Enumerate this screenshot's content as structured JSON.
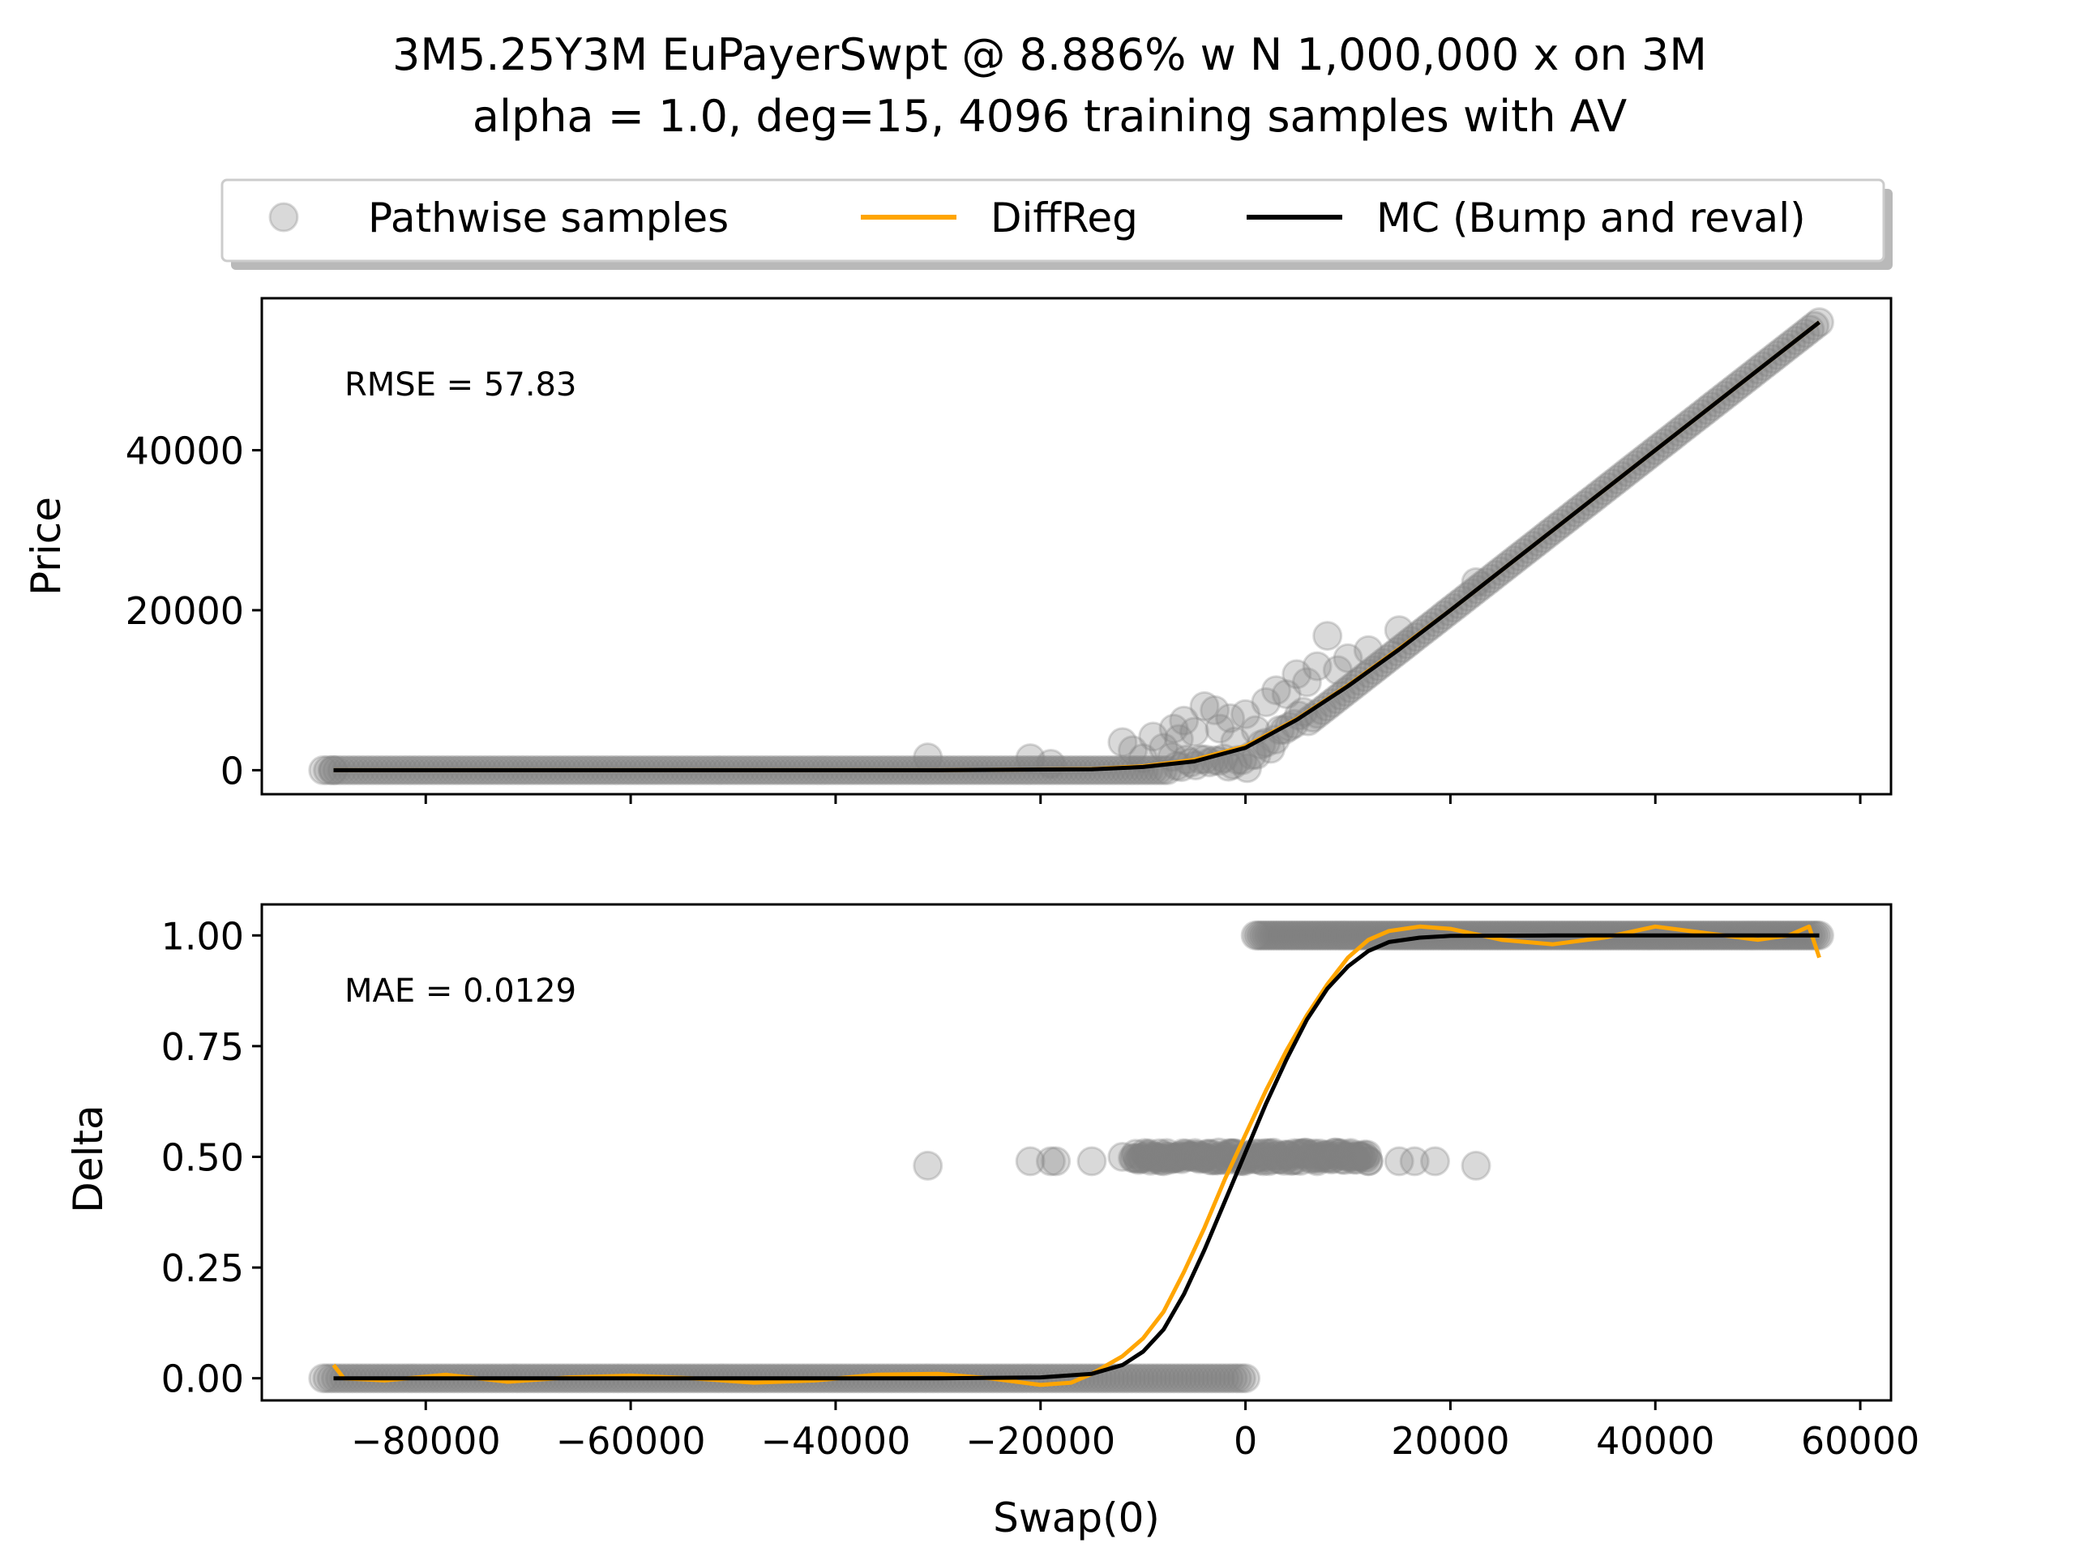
{
  "figure": {
    "title_line1": "3M5.25Y3M EuPayerSwpt @ 8.886% w N 1,000,000 x on 3M",
    "title_line2": "alpha = 1.0, deg=15, 4096 training samples with AV"
  },
  "legend": {
    "placement": "top-center, above plots",
    "entries": [
      {
        "label": "Pathwise samples",
        "kind": "marker",
        "color": "#808080"
      },
      {
        "label": "DiffReg",
        "kind": "line",
        "color": "#ffa500"
      },
      {
        "label": "MC (Bump and reval)",
        "kind": "line",
        "color": "#000000"
      }
    ]
  },
  "chart_data": [
    {
      "type": "scatter",
      "panel": "top",
      "ylabel": "Price",
      "xlabel": "",
      "xlim": [
        -96000,
        63000
      ],
      "ylim": [
        -3000,
        59000
      ],
      "yticks": [
        0,
        20000,
        40000
      ],
      "ytick_labels": [
        "0",
        "20000",
        "40000"
      ],
      "xticks": [
        -80000,
        -60000,
        -40000,
        -20000,
        0,
        20000,
        40000,
        60000
      ],
      "show_xtick_labels": false,
      "annotation": "RMSE = 57.83",
      "grid": false,
      "series": [
        {
          "name": "Pathwise samples",
          "kind": "scatter",
          "color": "#808080",
          "note": "dense band following max(x,0); scattered outliers near x=0",
          "points": [
            [
              -89000,
              0
            ],
            [
              -31000,
              1600
            ],
            [
              -21000,
              1500
            ],
            [
              -19000,
              800
            ],
            [
              -12000,
              3500
            ],
            [
              -11000,
              2500
            ],
            [
              -10000,
              1500
            ],
            [
              -9000,
              4200
            ],
            [
              -8000,
              2800
            ],
            [
              -7000,
              5200
            ],
            [
              -6500,
              3900
            ],
            [
              -6000,
              6200
            ],
            [
              -5000,
              4800
            ],
            [
              -4000,
              8000
            ],
            [
              -3000,
              7500
            ],
            [
              -2500,
              5200
            ],
            [
              -1500,
              6500
            ],
            [
              -1000,
              3600
            ],
            [
              0,
              7000
            ],
            [
              1000,
              5000
            ],
            [
              2000,
              8500
            ],
            [
              3000,
              10000
            ],
            [
              4000,
              9500
            ],
            [
              5000,
              12000
            ],
            [
              6000,
              11000
            ],
            [
              7000,
              13000
            ],
            [
              8000,
              16800
            ],
            [
              9000,
              12500
            ],
            [
              10000,
              14000
            ],
            [
              12000,
              15000
            ],
            [
              15000,
              17500
            ],
            [
              22500,
              23500
            ]
          ],
          "band": [
            [
              -90000,
              0
            ],
            [
              0,
              0
            ],
            [
              56000,
              56000
            ]
          ]
        },
        {
          "name": "DiffReg",
          "kind": "line",
          "color": "#ffa500",
          "x": [
            -89000,
            -30000,
            -15000,
            -10000,
            -5000,
            0,
            5000,
            10000,
            15000,
            20000,
            30000,
            40000,
            56000
          ],
          "y": [
            0,
            0,
            150,
            500,
            1300,
            3000,
            6400,
            10600,
            15200,
            20000,
            30000,
            40000,
            56000
          ]
        },
        {
          "name": "MC (Bump and reval)",
          "kind": "line",
          "color": "#000000",
          "x": [
            -89000,
            -30000,
            -15000,
            -10000,
            -5000,
            0,
            5000,
            10000,
            15000,
            20000,
            30000,
            40000,
            56000
          ],
          "y": [
            0,
            0,
            120,
            400,
            1100,
            2800,
            6300,
            10500,
            15100,
            20000,
            30000,
            40000,
            56000
          ]
        }
      ]
    },
    {
      "type": "scatter",
      "panel": "bottom",
      "ylabel": "Delta",
      "xlabel": "Swap(0)",
      "xlim": [
        -96000,
        63000
      ],
      "ylim": [
        -0.05,
        1.07
      ],
      "yticks": [
        0,
        0.25,
        0.5,
        0.75,
        1.0
      ],
      "ytick_labels": [
        "0.00",
        "0.25",
        "0.50",
        "0.75",
        "1.00"
      ],
      "xticks": [
        -80000,
        -60000,
        -40000,
        -20000,
        0,
        20000,
        40000,
        60000
      ],
      "xtick_labels": [
        "−80000",
        "−60000",
        "−40000",
        "−20000",
        "0",
        "20000",
        "40000",
        "60000"
      ],
      "annotation": "MAE = 0.0129",
      "grid": false,
      "series": [
        {
          "name": "Pathwise samples",
          "kind": "scatter",
          "color": "#808080",
          "band_low": {
            "x": [
              -90000,
              0
            ],
            "y": 0
          },
          "band_high": {
            "x": [
              1000,
              56000
            ],
            "y": 1
          },
          "band_mid": {
            "x": [
              -11000,
              12000
            ],
            "y": 0.5
          },
          "points": [
            [
              -31000,
              0.48
            ],
            [
              -21000,
              0.49
            ],
            [
              -19000,
              0.49
            ],
            [
              -18500,
              0.49
            ],
            [
              -15000,
              0.49
            ],
            [
              -12000,
              0.5
            ],
            [
              -8000,
              0.49
            ],
            [
              -4000,
              0.5
            ],
            [
              2000,
              0.5
            ],
            [
              7000,
              0.49
            ],
            [
              12000,
              0.49
            ],
            [
              15000,
              0.49
            ],
            [
              16500,
              0.49
            ],
            [
              18500,
              0.49
            ],
            [
              22500,
              0.48
            ]
          ]
        },
        {
          "name": "DiffReg",
          "kind": "line",
          "color": "#ffa500",
          "x": [
            -89000,
            -88000,
            -84000,
            -78000,
            -72000,
            -66000,
            -60000,
            -54000,
            -48000,
            -42000,
            -36000,
            -30000,
            -25000,
            -20000,
            -17000,
            -15000,
            -12000,
            -10000,
            -8000,
            -6000,
            -4000,
            -2000,
            0,
            2000,
            4000,
            6000,
            8000,
            10000,
            12000,
            14000,
            17000,
            20000,
            25000,
            30000,
            35000,
            40000,
            45000,
            50000,
            53000,
            55000,
            56000
          ],
          "y": [
            0.03,
            0.0,
            -0.005,
            0.008,
            -0.008,
            0.002,
            0.006,
            0.0,
            -0.01,
            -0.005,
            0.008,
            0.01,
            0.0,
            -0.015,
            -0.01,
            0.01,
            0.05,
            0.09,
            0.15,
            0.24,
            0.34,
            0.45,
            0.55,
            0.65,
            0.74,
            0.82,
            0.89,
            0.95,
            0.99,
            1.01,
            1.02,
            1.015,
            0.99,
            0.98,
            0.995,
            1.02,
            1.005,
            0.99,
            1.0,
            1.02,
            0.95
          ]
        },
        {
          "name": "MC (Bump and reval)",
          "kind": "line",
          "color": "#000000",
          "x": [
            -89000,
            -30000,
            -20000,
            -15000,
            -12000,
            -10000,
            -8000,
            -6000,
            -4000,
            -2000,
            0,
            2000,
            4000,
            6000,
            8000,
            10000,
            12000,
            14000,
            17000,
            20000,
            30000,
            56000
          ],
          "y": [
            0,
            0,
            0.002,
            0.01,
            0.03,
            0.06,
            0.11,
            0.19,
            0.29,
            0.4,
            0.51,
            0.62,
            0.72,
            0.81,
            0.88,
            0.93,
            0.965,
            0.985,
            0.995,
            0.999,
            1.0,
            1.0
          ]
        }
      ]
    }
  ]
}
